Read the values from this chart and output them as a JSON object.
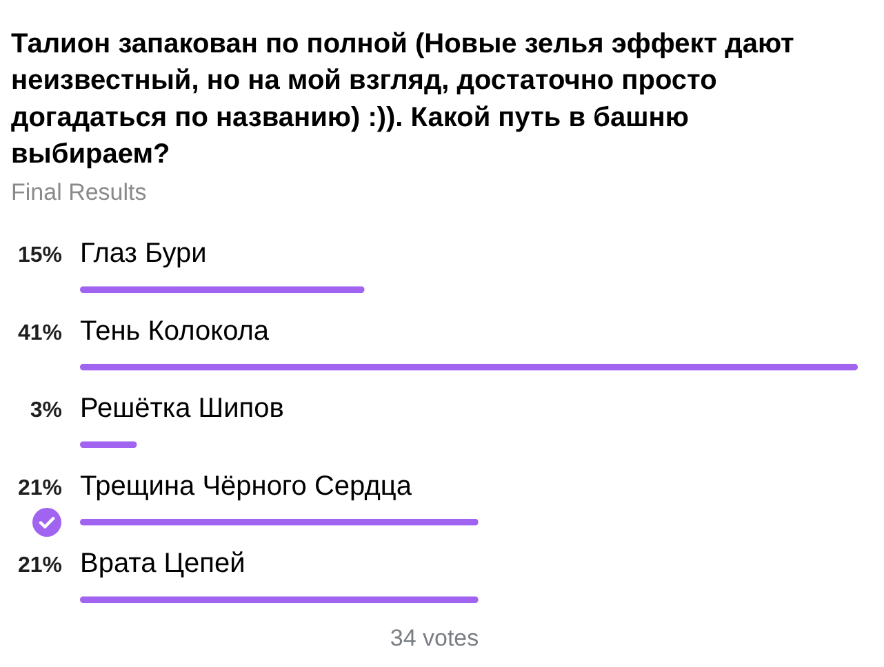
{
  "chart_data": {
    "type": "bar",
    "orientation": "horizontal",
    "title": "Талион запакован по полной (Новые зелья эффект дают неизвестный, но на мой взгляд, достаточно просто догадаться по названию) :)). Какой путь в башню выбираем?",
    "subtitle": "Final Results",
    "categories": [
      "Глаз Бури",
      "Тень Колокола",
      "Решётка Шипов",
      "Трещина Чёрного Сердца",
      "Врата Цепей"
    ],
    "values": [
      15,
      41,
      3,
      21,
      21
    ],
    "value_labels": [
      "15%",
      "41%",
      "3%",
      "21%",
      "21%"
    ],
    "color": "#a064f0",
    "annotations": [
      "34 votes"
    ]
  }
}
